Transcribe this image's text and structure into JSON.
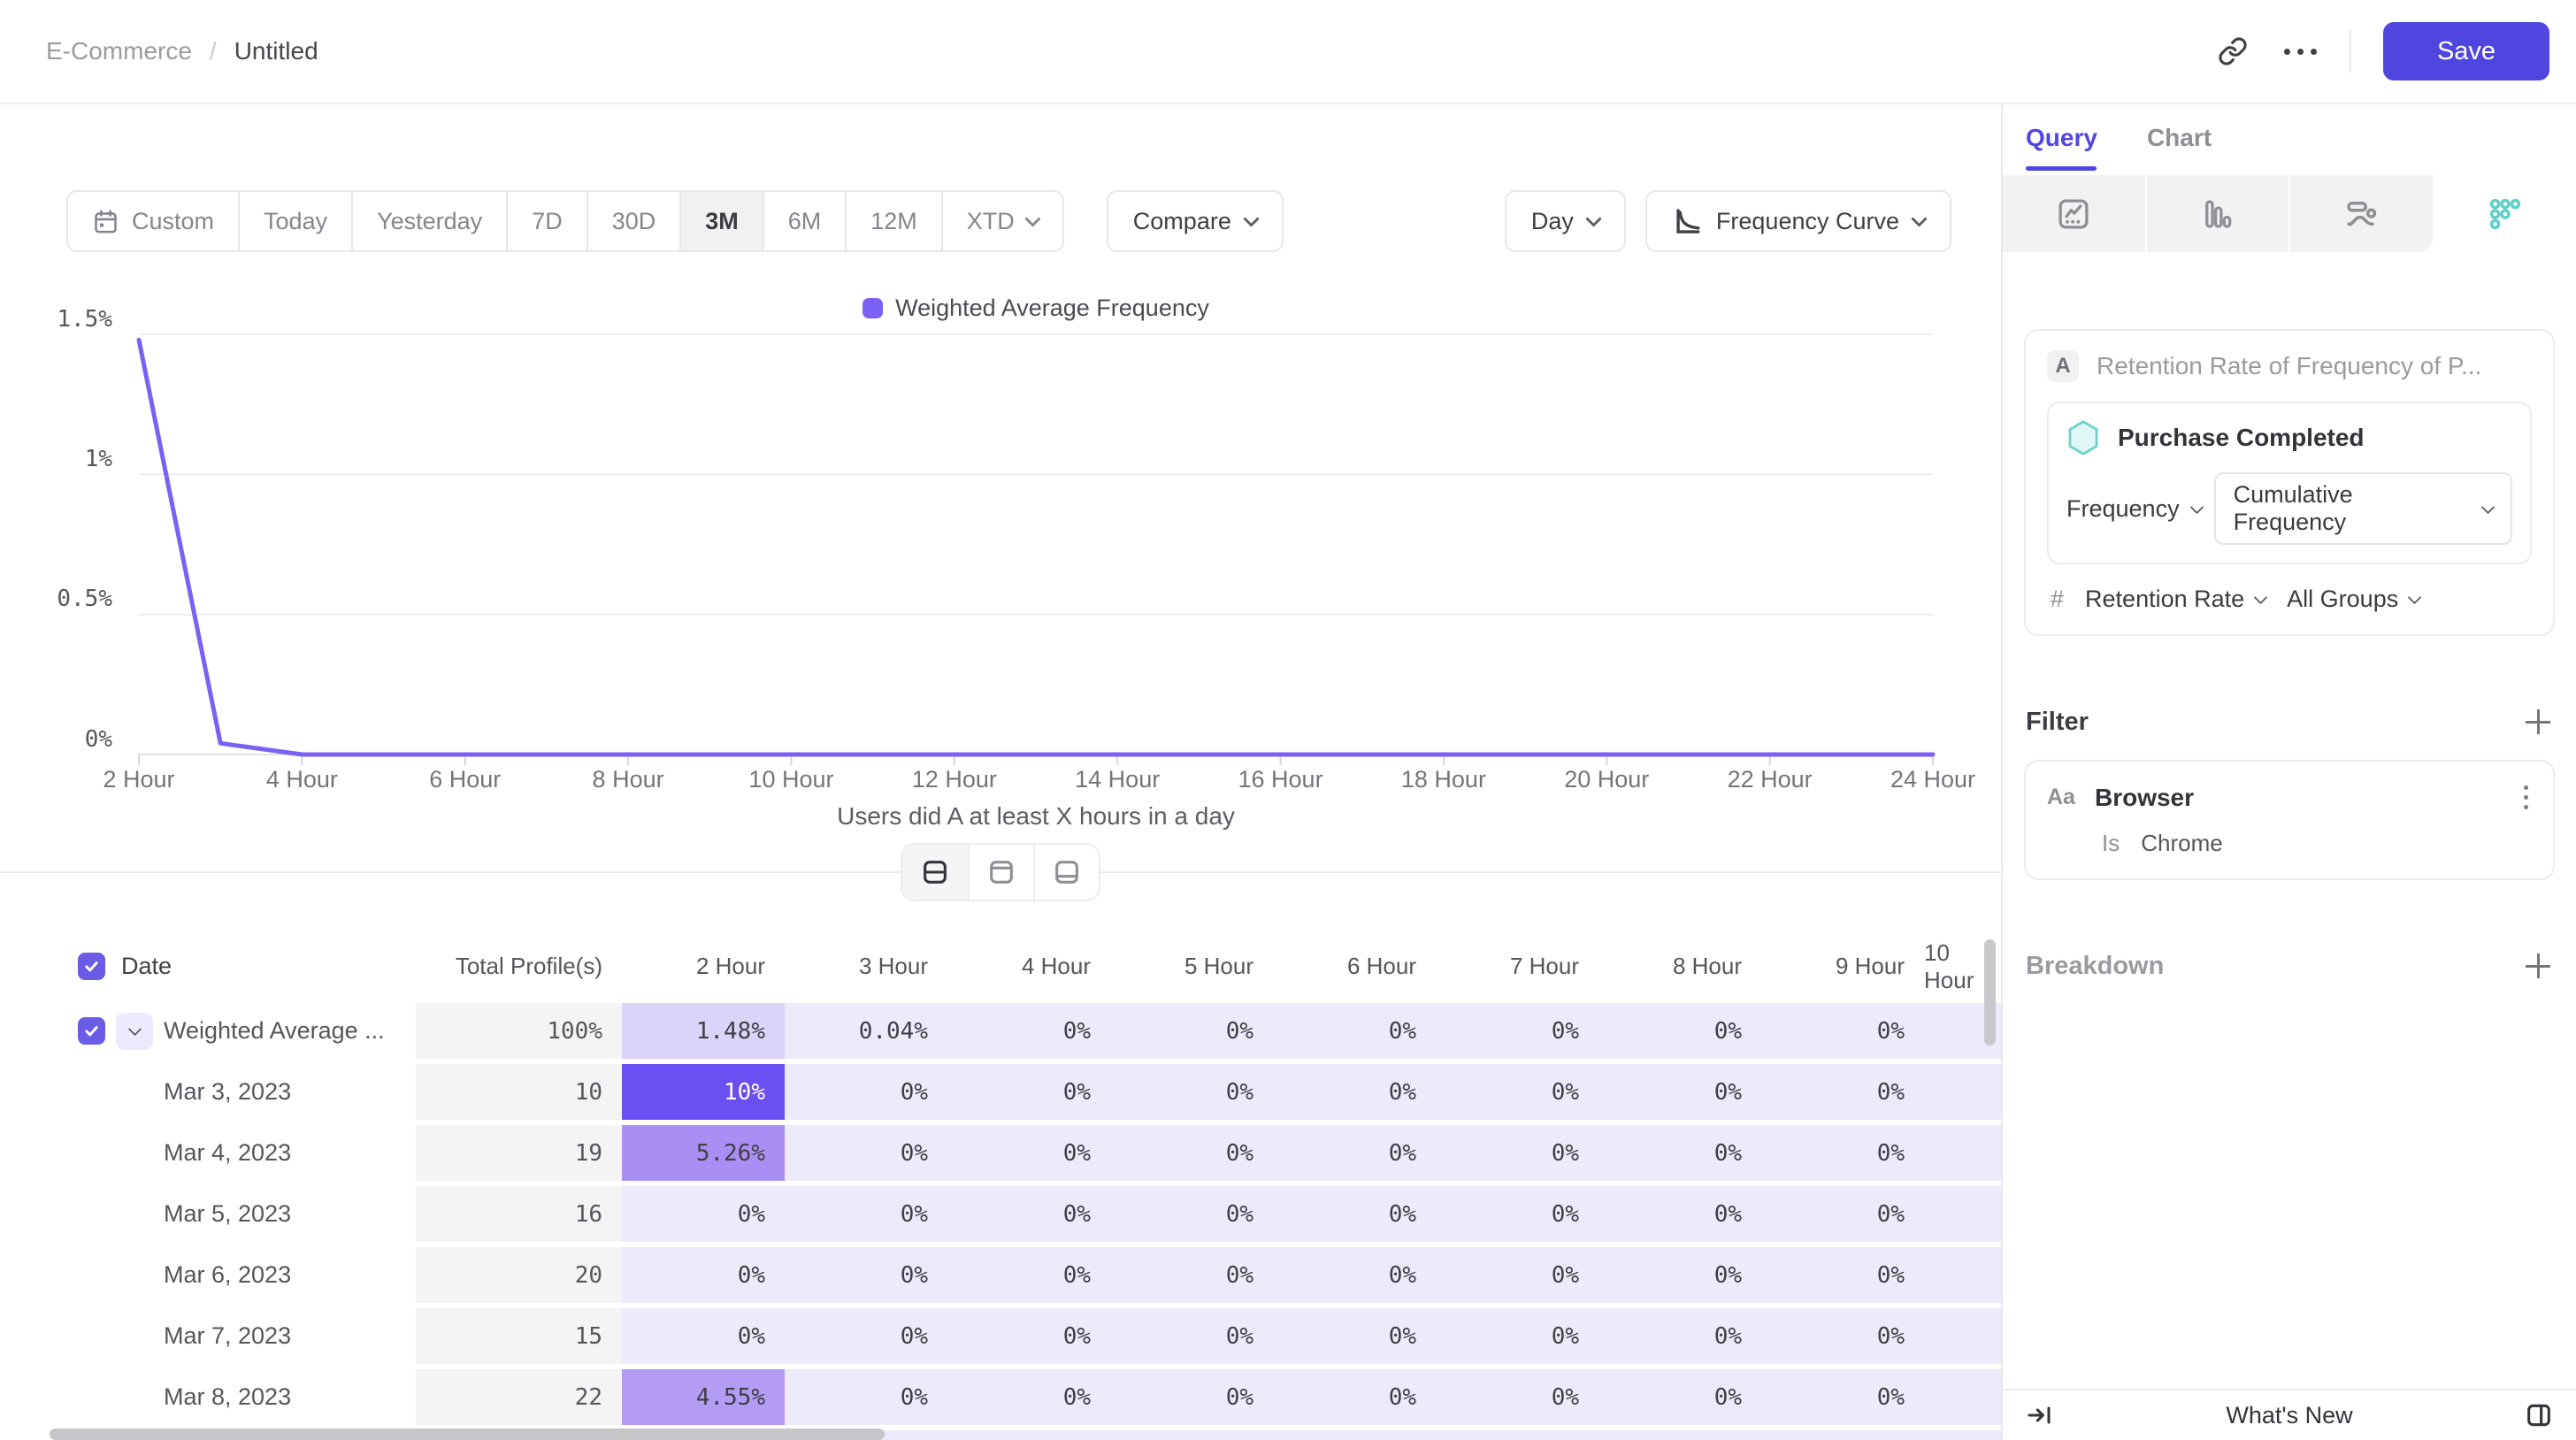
{
  "colors": {
    "accent": "#4f46e0",
    "tab_active": "#5046e1",
    "line": "#7b61f3",
    "teal": "#5fd0c9",
    "cell": "#edeafb",
    "cell_soft": "#dcd3f8",
    "cell_mid": "#a98ff3",
    "cell_mid3": "#b29cf4",
    "cell_strong": "#6b4ff0",
    "total_col": "#f4f4f5"
  },
  "header": {
    "breadcrumb": {
      "parent": "E-Commerce",
      "separator": "/",
      "current": "Untitled"
    },
    "icons": [
      "link-icon",
      "ellipsis-icon"
    ],
    "save_label": "Save"
  },
  "toolbar": {
    "ranges": [
      "Custom",
      "Today",
      "Yesterday",
      "7D",
      "30D",
      "3M",
      "6M",
      "12M",
      "XTD"
    ],
    "selected_range": "3M",
    "compare": "Compare",
    "granularity": "Day",
    "chart_mode": "Frequency Curve"
  },
  "chart_data": {
    "type": "line",
    "title": "",
    "xlabel": "Users did A at least X hours in a day",
    "ylabel": "",
    "ylim": [
      0,
      1.5
    ],
    "y_unit": "%",
    "grid": true,
    "legend_position": "top",
    "x": [
      2,
      3,
      4,
      5,
      6,
      7,
      8,
      9,
      10,
      11,
      12,
      13,
      14,
      15,
      16,
      17,
      18,
      19,
      20,
      21,
      22,
      23,
      24
    ],
    "x_tick_labels": [
      "2 Hour",
      "4 Hour",
      "6 Hour",
      "8 Hour",
      "10 Hour",
      "12 Hour",
      "14 Hour",
      "16 Hour",
      "18 Hour",
      "20 Hour",
      "22 Hour",
      "24 Hour"
    ],
    "y_tick_labels": [
      "0%",
      "0.5%",
      "1%",
      "1.5%"
    ],
    "series": [
      {
        "name": "Weighted Average Frequency",
        "color": "#7b61f3",
        "values": [
          1.48,
          0.04,
          0,
          0,
          0,
          0,
          0,
          0,
          0,
          0,
          0,
          0,
          0,
          0,
          0,
          0,
          0,
          0,
          0,
          0,
          0,
          0,
          0
        ]
      }
    ]
  },
  "layout_toggles": [
    "split-view",
    "table-only-view",
    "chart-only-view"
  ],
  "layout_selected": "split-view",
  "table": {
    "columns": [
      "Date",
      "Total Profile(s)",
      "2 Hour",
      "3 Hour",
      "4 Hour",
      "5 Hour",
      "6 Hour",
      "7 Hour",
      "8 Hour",
      "9 Hour",
      "10 Hour"
    ],
    "select_all_checked": true,
    "rows": [
      {
        "label": "Weighted Average ...",
        "checked": true,
        "expandable": true,
        "total": "100%",
        "cells": [
          "1.48%",
          "0.04%",
          "0%",
          "0%",
          "0%",
          "0%",
          "0%",
          "0%",
          ""
        ],
        "hl": {
          "0": "soft"
        }
      },
      {
        "label": "Mar 3, 2023",
        "total": "10",
        "cells": [
          "10%",
          "0%",
          "0%",
          "0%",
          "0%",
          "0%",
          "0%",
          "0%",
          ""
        ],
        "hl": {
          "0": "strong"
        }
      },
      {
        "label": "Mar 4, 2023",
        "total": "19",
        "cells": [
          "5.26%",
          "0%",
          "0%",
          "0%",
          "0%",
          "0%",
          "0%",
          "0%",
          ""
        ],
        "hl": {
          "0": "mid"
        }
      },
      {
        "label": "Mar 5, 2023",
        "total": "16",
        "cells": [
          "0%",
          "0%",
          "0%",
          "0%",
          "0%",
          "0%",
          "0%",
          "0%",
          ""
        ]
      },
      {
        "label": "Mar 6, 2023",
        "total": "20",
        "cells": [
          "0%",
          "0%",
          "0%",
          "0%",
          "0%",
          "0%",
          "0%",
          "0%",
          ""
        ]
      },
      {
        "label": "Mar 7, 2023",
        "total": "15",
        "cells": [
          "0%",
          "0%",
          "0%",
          "0%",
          "0%",
          "0%",
          "0%",
          "0%",
          ""
        ]
      },
      {
        "label": "Mar 8, 2023",
        "total": "22",
        "cells": [
          "4.55%",
          "0%",
          "0%",
          "0%",
          "0%",
          "0%",
          "0%",
          "0%",
          ""
        ],
        "hl": {
          "0": "mid3"
        }
      },
      {
        "label": "",
        "total": "",
        "cells": [
          "",
          "",
          "",
          "",
          "",
          "",
          "",
          "",
          ""
        ],
        "partial": true
      }
    ]
  },
  "panel": {
    "tabs": {
      "query": "Query",
      "chart": "Chart"
    },
    "chart_types": [
      "insights-icon",
      "bars-icon",
      "flows-icon",
      "retention-dots-icon"
    ],
    "chart_type_selected": "retention-dots-icon",
    "query_card": {
      "step_label": "A",
      "title": "Retention Rate of Frequency of P...",
      "event_name": "Purchase Completed",
      "frequency_dropdown": "Frequency",
      "cumulative_dropdown": "Cumulative Frequency",
      "hash": "#",
      "retention_dropdown": "Retention Rate",
      "groups_dropdown": "All Groups"
    },
    "filter": {
      "label": "Filter",
      "item": {
        "type_icon": "Aa",
        "name": "Browser",
        "operator": "Is",
        "value": "Chrome"
      }
    },
    "breakdown": {
      "label": "Breakdown"
    },
    "footer": {
      "whats_new": "What's New"
    }
  }
}
